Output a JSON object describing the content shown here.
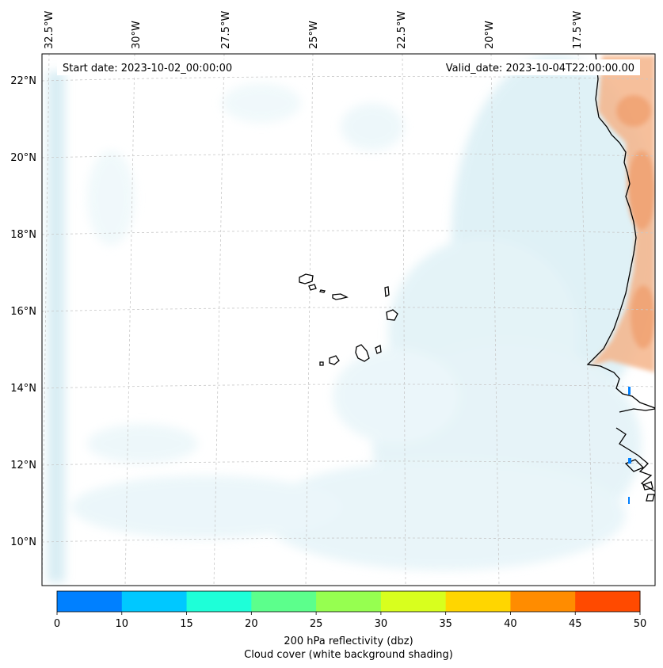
{
  "header": {
    "start_date": "Start date: 2023-10-02_00:00:00",
    "valid_date": "Valid_date: 2023-10-04T22:00:00.00"
  },
  "longitude_labels": [
    "32.5°W",
    "30°W",
    "27.5°W",
    "25°W",
    "22.5°W",
    "20°W",
    "17.5°W"
  ],
  "latitude_labels": [
    "22°N",
    "20°N",
    "18°N",
    "16°N",
    "14°N",
    "12°N",
    "10°N"
  ],
  "colorbar": {
    "ticks": [
      "0",
      "10",
      "15",
      "20",
      "25",
      "30",
      "35",
      "40",
      "45",
      "50"
    ],
    "colors": [
      "#0080ff",
      "#00c8ff",
      "#1effd8",
      "#5cff8c",
      "#96ff50",
      "#d8ff1e",
      "#ffd600",
      "#ff8c00",
      "#ff4a00"
    ],
    "label_line1": "200 hPa reflectivity (dbz)",
    "label_line2": "Cloud cover (white background shading)"
  },
  "colors": {
    "cloud": "#b9dfeb",
    "land_warm": "#f0a070",
    "coast": "#000000",
    "grid": "#c8c8c8"
  }
}
